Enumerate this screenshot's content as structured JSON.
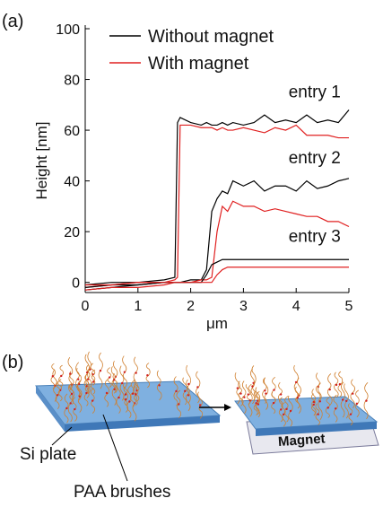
{
  "panel_labels": [
    "(a)",
    "(b)"
  ],
  "chart_data": {
    "type": "line",
    "ylabel": "Height [nm]",
    "xlabel": "μm",
    "x": [
      0,
      0.5,
      1,
      1.5,
      1.7,
      1.75,
      1.8,
      2,
      2.2,
      2.3,
      2.4,
      2.5,
      2.6,
      2.7,
      2.8,
      3,
      3.2,
      3.4,
      3.6,
      3.8,
      4,
      4.2,
      4.4,
      4.6,
      4.8,
      5
    ],
    "series": [
      {
        "name": "Without magnet",
        "color": "#000000",
        "values": [
          -1,
          0,
          0,
          1,
          2,
          63,
          65,
          63,
          62,
          63,
          62,
          62,
          63,
          62,
          63,
          62,
          63,
          66,
          63,
          64,
          63,
          66,
          63,
          64,
          63,
          68
        ]
      },
      {
        "name": "With magnet",
        "color": "#e02020",
        "values": [
          -2,
          -1,
          0,
          0,
          1,
          2,
          62,
          62,
          61,
          61,
          61,
          60,
          61,
          60,
          60,
          61,
          60,
          59,
          61,
          60,
          62,
          58,
          58,
          58,
          57,
          57
        ]
      },
      {
        "color": "#000000",
        "values": [
          -3,
          -2,
          -1,
          0,
          0,
          0,
          0,
          1,
          1,
          5,
          28,
          33,
          36,
          35,
          40,
          38,
          40,
          36,
          38,
          38,
          36,
          40,
          37,
          38,
          40,
          41
        ]
      },
      {
        "color": "#e02020",
        "values": [
          -3,
          -2,
          -2,
          -1,
          0,
          0,
          0,
          0,
          1,
          1,
          2,
          20,
          30,
          28,
          32,
          30,
          30,
          28,
          29,
          28,
          27,
          26,
          26,
          24,
          24,
          22
        ]
      },
      {
        "color": "#000000",
        "values": [
          -2,
          -1,
          -1,
          0,
          0,
          0,
          0,
          0,
          0,
          3,
          7,
          8,
          9,
          9,
          9,
          9,
          9,
          9,
          9,
          9,
          9,
          9,
          9,
          9,
          9,
          9
        ]
      },
      {
        "color": "#e02020",
        "values": [
          -1,
          -1,
          0,
          0,
          0,
          0,
          0,
          0,
          0,
          0,
          0,
          3,
          5,
          6,
          6,
          6,
          6,
          6,
          6,
          6,
          6,
          6,
          6,
          6,
          6,
          6
        ]
      }
    ],
    "annotations": [
      {
        "text": "entry 1",
        "x": 4.35,
        "y": 73
      },
      {
        "text": "entry 2",
        "x": 4.35,
        "y": 47
      },
      {
        "text": "entry 3",
        "x": 4.35,
        "y": 16
      }
    ],
    "xlim": [
      0,
      5
    ],
    "ylim": [
      -4,
      100
    ],
    "xticks": [
      0,
      1,
      2,
      3,
      4,
      5
    ],
    "yticks": [
      0,
      20,
      40,
      60,
      80,
      100
    ]
  },
  "diagram": {
    "labels": [
      "Si plate",
      "PAA brushes"
    ],
    "magnet_label": "Magnet"
  }
}
